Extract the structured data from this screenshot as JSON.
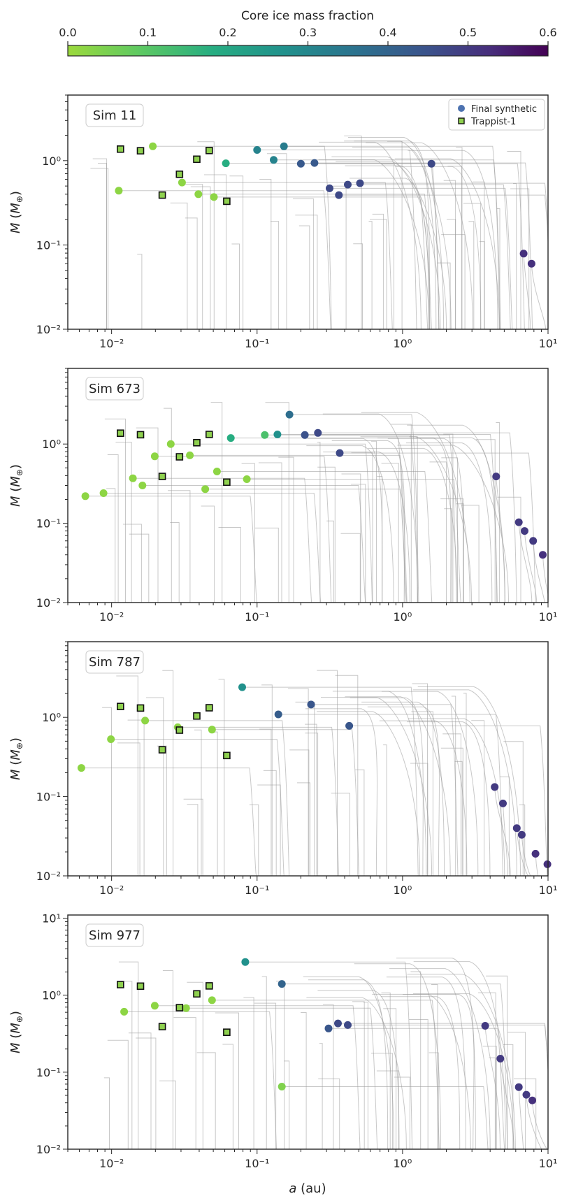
{
  "colorbar": {
    "title": "Core ice mass fraction",
    "ticks": [
      0.0,
      0.1,
      0.2,
      0.3,
      0.4,
      0.5,
      0.6
    ],
    "tick_labels": [
      "0.0",
      "0.1",
      "0.2",
      "0.3",
      "0.4",
      "0.5",
      "0.6"
    ],
    "range": [
      0.0,
      0.6
    ],
    "colormap": "viridis_r"
  },
  "legend": {
    "synthetic_label": "Final synthetic",
    "trappist_label": "Trappist-1",
    "synthetic_color": "#4c72b0",
    "trappist_face": "#8fd14f"
  },
  "axes_text": {
    "xlabel_italic": "a",
    "xlabel_rest": " (au)",
    "ylabel_italic": "M",
    "ylabel_rest": " (M",
    "ylabel_sub": "⊕",
    "ylabel_close": ")"
  },
  "chart_data": [
    {
      "type": "scatter",
      "title": "Sim 11",
      "xlabel": "a (au)",
      "ylabel": "M (M⊕)",
      "xscale": "log",
      "yscale": "log",
      "xlim": [
        0.005,
        10
      ],
      "ylim": [
        0.01,
        6
      ],
      "x_tick_labels": [
        "10⁻²",
        "10⁻¹",
        "10⁰",
        "10¹"
      ],
      "y_tick_labels": [
        "10⁻²",
        "10⁻¹",
        "10⁰"
      ],
      "series": [
        {
          "name": "Final synthetic",
          "points": [
            {
              "a": 0.0112,
              "m": 0.44,
              "ice": 0.02
            },
            {
              "a": 0.0192,
              "m": 1.48,
              "ice": 0.02
            },
            {
              "a": 0.0305,
              "m": 0.55,
              "ice": 0.02
            },
            {
              "a": 0.0395,
              "m": 0.4,
              "ice": 0.02
            },
            {
              "a": 0.0505,
              "m": 0.37,
              "ice": 0.02
            },
            {
              "a": 0.061,
              "m": 0.93,
              "ice": 0.18
            },
            {
              "a": 0.1,
              "m": 1.34,
              "ice": 0.31
            },
            {
              "a": 0.13,
              "m": 1.02,
              "ice": 0.31
            },
            {
              "a": 0.153,
              "m": 1.48,
              "ice": 0.33
            },
            {
              "a": 0.2,
              "m": 0.92,
              "ice": 0.43
            },
            {
              "a": 0.248,
              "m": 0.94,
              "ice": 0.43
            },
            {
              "a": 0.315,
              "m": 0.47,
              "ice": 0.47
            },
            {
              "a": 0.365,
              "m": 0.39,
              "ice": 0.47
            },
            {
              "a": 0.42,
              "m": 0.52,
              "ice": 0.47
            },
            {
              "a": 0.51,
              "m": 0.54,
              "ice": 0.47
            },
            {
              "a": 1.58,
              "m": 0.92,
              "ice": 0.47
            },
            {
              "a": 6.8,
              "m": 0.079,
              "ice": 0.52
            },
            {
              "a": 7.7,
              "m": 0.06,
              "ice": 0.52
            }
          ]
        },
        {
          "name": "Trappist-1",
          "points": [
            {
              "a": 0.0115,
              "m": 1.37
            },
            {
              "a": 0.0158,
              "m": 1.31
            },
            {
              "a": 0.0223,
              "m": 0.39
            },
            {
              "a": 0.0293,
              "m": 0.69
            },
            {
              "a": 0.0385,
              "m": 1.04
            },
            {
              "a": 0.0469,
              "m": 1.32
            },
            {
              "a": 0.0619,
              "m": 0.33
            }
          ]
        }
      ]
    },
    {
      "type": "scatter",
      "title": "Sim 673",
      "xlabel": "a (au)",
      "ylabel": "M (M⊕)",
      "xscale": "log",
      "yscale": "log",
      "xlim": [
        0.005,
        10
      ],
      "ylim": [
        0.01,
        9
      ],
      "x_tick_labels": [
        "10⁻²",
        "10⁻¹",
        "10⁰",
        "10¹"
      ],
      "y_tick_labels": [
        "10⁻²",
        "10⁻¹",
        "10⁰"
      ],
      "series": [
        {
          "name": "Final synthetic",
          "points": [
            {
              "a": 0.0066,
              "m": 0.22,
              "ice": 0.02
            },
            {
              "a": 0.0088,
              "m": 0.24,
              "ice": 0.02
            },
            {
              "a": 0.014,
              "m": 0.37,
              "ice": 0.02
            },
            {
              "a": 0.0163,
              "m": 0.3,
              "ice": 0.02
            },
            {
              "a": 0.0198,
              "m": 0.7,
              "ice": 0.02
            },
            {
              "a": 0.0255,
              "m": 1.0,
              "ice": 0.02
            },
            {
              "a": 0.0345,
              "m": 0.72,
              "ice": 0.02
            },
            {
              "a": 0.044,
              "m": 0.27,
              "ice": 0.02
            },
            {
              "a": 0.053,
              "m": 0.45,
              "ice": 0.02
            },
            {
              "a": 0.085,
              "m": 0.36,
              "ice": 0.02
            },
            {
              "a": 0.066,
              "m": 1.19,
              "ice": 0.18
            },
            {
              "a": 0.113,
              "m": 1.3,
              "ice": 0.12
            },
            {
              "a": 0.138,
              "m": 1.32,
              "ice": 0.27
            },
            {
              "a": 0.167,
              "m": 2.35,
              "ice": 0.37
            },
            {
              "a": 0.213,
              "m": 1.3,
              "ice": 0.45
            },
            {
              "a": 0.262,
              "m": 1.38,
              "ice": 0.47
            },
            {
              "a": 0.37,
              "m": 0.77,
              "ice": 0.47
            },
            {
              "a": 4.4,
              "m": 0.39,
              "ice": 0.5
            },
            {
              "a": 6.3,
              "m": 0.103,
              "ice": 0.5
            },
            {
              "a": 6.9,
              "m": 0.08,
              "ice": 0.5
            },
            {
              "a": 7.9,
              "m": 0.06,
              "ice": 0.5
            },
            {
              "a": 9.2,
              "m": 0.04,
              "ice": 0.52
            }
          ]
        },
        {
          "name": "Trappist-1",
          "points": [
            {
              "a": 0.0115,
              "m": 1.37
            },
            {
              "a": 0.0158,
              "m": 1.31
            },
            {
              "a": 0.0223,
              "m": 0.39
            },
            {
              "a": 0.0293,
              "m": 0.69
            },
            {
              "a": 0.0385,
              "m": 1.04
            },
            {
              "a": 0.0469,
              "m": 1.32
            },
            {
              "a": 0.0619,
              "m": 0.33
            }
          ]
        }
      ]
    },
    {
      "type": "scatter",
      "title": "Sim 787",
      "xlabel": "a (au)",
      "ylabel": "M (M⊕)",
      "xscale": "log",
      "yscale": "log",
      "xlim": [
        0.005,
        10
      ],
      "ylim": [
        0.01,
        9
      ],
      "x_tick_labels": [
        "10⁻²",
        "10⁻¹",
        "10⁰",
        "10¹"
      ],
      "y_tick_labels": [
        "10⁻²",
        "10⁻¹",
        "10⁰"
      ],
      "series": [
        {
          "name": "Final synthetic",
          "points": [
            {
              "a": 0.0062,
              "m": 0.23,
              "ice": 0.02
            },
            {
              "a": 0.0099,
              "m": 0.53,
              "ice": 0.02
            },
            {
              "a": 0.017,
              "m": 0.91,
              "ice": 0.02
            },
            {
              "a": 0.0285,
              "m": 0.75,
              "ice": 0.02
            },
            {
              "a": 0.049,
              "m": 0.7,
              "ice": 0.02
            },
            {
              "a": 0.079,
              "m": 2.4,
              "ice": 0.27
            },
            {
              "a": 0.14,
              "m": 1.09,
              "ice": 0.42
            },
            {
              "a": 0.235,
              "m": 1.45,
              "ice": 0.44
            },
            {
              "a": 0.43,
              "m": 0.78,
              "ice": 0.44
            },
            {
              "a": 4.3,
              "m": 0.132,
              "ice": 0.5
            },
            {
              "a": 4.9,
              "m": 0.082,
              "ice": 0.5
            },
            {
              "a": 6.1,
              "m": 0.04,
              "ice": 0.5
            },
            {
              "a": 6.6,
              "m": 0.033,
              "ice": 0.5
            },
            {
              "a": 8.2,
              "m": 0.019,
              "ice": 0.52
            },
            {
              "a": 9.9,
              "m": 0.014,
              "ice": 0.52
            }
          ]
        },
        {
          "name": "Trappist-1",
          "points": [
            {
              "a": 0.0115,
              "m": 1.37
            },
            {
              "a": 0.0158,
              "m": 1.31
            },
            {
              "a": 0.0223,
              "m": 0.39
            },
            {
              "a": 0.0293,
              "m": 0.69
            },
            {
              "a": 0.0385,
              "m": 1.04
            },
            {
              "a": 0.0469,
              "m": 1.32
            },
            {
              "a": 0.0619,
              "m": 0.33
            }
          ]
        }
      ]
    },
    {
      "type": "scatter",
      "title": "Sim 977",
      "xlabel": "a (au)",
      "ylabel": "M (M⊕)",
      "xscale": "log",
      "yscale": "log",
      "xlim": [
        0.005,
        10
      ],
      "ylim": [
        0.01,
        11
      ],
      "x_tick_labels": [
        "10⁻²",
        "10⁻¹",
        "10⁰",
        "10¹"
      ],
      "y_tick_labels": [
        "10⁻²",
        "10⁻¹",
        "10⁰",
        "10¹"
      ],
      "series": [
        {
          "name": "Final synthetic",
          "points": [
            {
              "a": 0.0122,
              "m": 0.61,
              "ice": 0.02
            },
            {
              "a": 0.0198,
              "m": 0.73,
              "ice": 0.02
            },
            {
              "a": 0.0325,
              "m": 0.68,
              "ice": 0.02
            },
            {
              "a": 0.049,
              "m": 0.86,
              "ice": 0.02
            },
            {
              "a": 0.148,
              "m": 0.065,
              "ice": 0.04
            },
            {
              "a": 0.083,
              "m": 2.7,
              "ice": 0.27
            },
            {
              "a": 0.148,
              "m": 1.4,
              "ice": 0.4
            },
            {
              "a": 0.31,
              "m": 0.37,
              "ice": 0.44
            },
            {
              "a": 0.36,
              "m": 0.43,
              "ice": 0.47
            },
            {
              "a": 0.42,
              "m": 0.41,
              "ice": 0.47
            },
            {
              "a": 3.7,
              "m": 0.4,
              "ice": 0.5
            },
            {
              "a": 4.7,
              "m": 0.15,
              "ice": 0.5
            },
            {
              "a": 6.3,
              "m": 0.064,
              "ice": 0.5
            },
            {
              "a": 7.1,
              "m": 0.051,
              "ice": 0.5
            },
            {
              "a": 7.8,
              "m": 0.043,
              "ice": 0.52
            }
          ]
        },
        {
          "name": "Trappist-1",
          "points": [
            {
              "a": 0.0115,
              "m": 1.37
            },
            {
              "a": 0.0158,
              "m": 1.31
            },
            {
              "a": 0.0223,
              "m": 0.39
            },
            {
              "a": 0.0293,
              "m": 0.69
            },
            {
              "a": 0.0385,
              "m": 1.04
            },
            {
              "a": 0.0469,
              "m": 1.32
            },
            {
              "a": 0.0619,
              "m": 0.33
            }
          ]
        }
      ]
    }
  ]
}
